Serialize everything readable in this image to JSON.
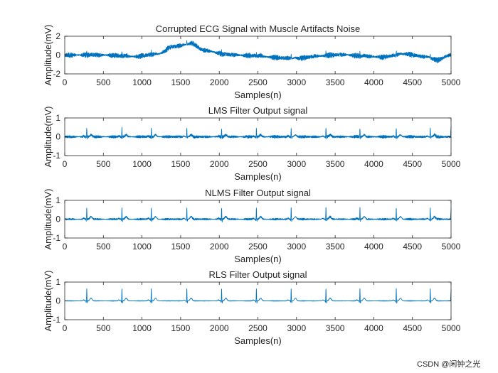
{
  "chart_data": [
    {
      "type": "line",
      "title": "Corrupted ECG Signal with Muscle Artifacts Noise",
      "xlabel": "Samples(n)",
      "ylabel": "Amplitude(mV)",
      "xlim": [
        0,
        5000
      ],
      "ylim": [
        -2,
        2
      ],
      "xticks": [
        "0",
        "500",
        "1000",
        "1500",
        "2000",
        "2500",
        "3000",
        "3500",
        "4000",
        "4500",
        "5000"
      ],
      "yticks": [
        "-2",
        "0",
        "2"
      ],
      "series": [
        {
          "name": "corrupted",
          "color": "#0072BD",
          "samples": 5000,
          "peak_samples": [
            285,
            740,
            1120,
            1580,
            2030,
            2480,
            2930,
            3380,
            3820,
            4290,
            4730
          ],
          "baseline_points": [
            [
              0,
              0.0
            ],
            [
              500,
              0.0
            ],
            [
              900,
              -0.15
            ],
            [
              1200,
              0.1
            ],
            [
              1400,
              0.9
            ],
            [
              1650,
              1.2
            ],
            [
              1800,
              0.5
            ],
            [
              2100,
              0.05
            ],
            [
              2400,
              -0.05
            ],
            [
              2800,
              -0.3
            ],
            [
              3000,
              -0.35
            ],
            [
              3300,
              -0.1
            ],
            [
              3600,
              0.05
            ],
            [
              3800,
              -0.1
            ],
            [
              4100,
              -0.2
            ],
            [
              4400,
              0.1
            ],
            [
              4700,
              -0.2
            ],
            [
              4800,
              -0.55
            ],
            [
              5000,
              0.0
            ]
          ],
          "noise_amplitude": 0.32
        }
      ]
    },
    {
      "type": "line",
      "title": "LMS Filter Output signal",
      "xlabel": "Samples(n)",
      "ylabel": "Amplitude(mV)",
      "xlim": [
        0,
        5000
      ],
      "ylim": [
        -1,
        1
      ],
      "xticks": [
        "0",
        "500",
        "1000",
        "1500",
        "2000",
        "2500",
        "3000",
        "3500",
        "4000",
        "4500",
        "5000"
      ],
      "yticks": [
        "-1",
        "0",
        "1"
      ],
      "series": [
        {
          "name": "lms",
          "color": "#0072BD",
          "samples": 5000,
          "peak_samples": [
            285,
            740,
            1120,
            1580,
            2030,
            2480,
            2930,
            3380,
            3820,
            4290,
            4730
          ],
          "peak_amplitude": 0.45,
          "final_spike": 0.7,
          "noise_amplitude": 0.09
        }
      ]
    },
    {
      "type": "line",
      "title": "NLMS Filter Output signal",
      "xlabel": "Samples(n)",
      "ylabel": "Amplitude(mV)",
      "xlim": [
        0,
        5000
      ],
      "ylim": [
        -1,
        1
      ],
      "xticks": [
        "0",
        "500",
        "1000",
        "1500",
        "2000",
        "2500",
        "3000",
        "3500",
        "4000",
        "4500",
        "5000"
      ],
      "yticks": [
        "-1",
        "0",
        "1"
      ],
      "series": [
        {
          "name": "nlms",
          "color": "#0072BD",
          "samples": 5000,
          "peak_samples": [
            285,
            740,
            1120,
            1580,
            2030,
            2480,
            2930,
            3380,
            3820,
            4290,
            4730
          ],
          "peak_amplitude": 0.6,
          "final_spike": 0.65,
          "noise_amplitude": 0.06
        }
      ]
    },
    {
      "type": "line",
      "title": "RLS Filter Output signal",
      "xlabel": "Samples(n)",
      "ylabel": "Amplitude(mV)",
      "xlim": [
        0,
        5000
      ],
      "ylim": [
        -1,
        1
      ],
      "xticks": [
        "0",
        "500",
        "1000",
        "1500",
        "2000",
        "2500",
        "3000",
        "3500",
        "4000",
        "4500",
        "5000"
      ],
      "yticks": [
        "-1",
        "0",
        "1"
      ],
      "series": [
        {
          "name": "rls",
          "color": "#0072BD",
          "samples": 5000,
          "peak_samples": [
            285,
            740,
            1120,
            1580,
            2030,
            2480,
            2930,
            3380,
            3820,
            4290,
            4730
          ],
          "peak_amplitude": 0.65,
          "final_spike": 0.7,
          "noise_amplitude": 0.02
        }
      ]
    }
  ],
  "watermark": "CSDN @闲钟之光"
}
